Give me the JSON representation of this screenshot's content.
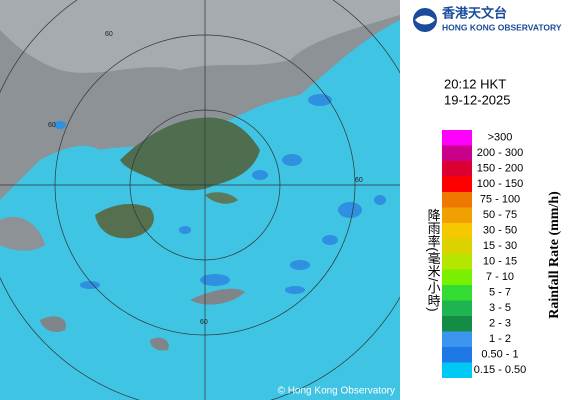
{
  "header": {
    "name_zh": "香港天文台",
    "name_en": "HONG KONG OBSERVATORY"
  },
  "time": "20:12 HKT",
  "date": "19-12-2025",
  "legend": {
    "title_zh": "降雨率(毫米/小時)",
    "title_en": "Rainfall Rate (mm/h)",
    "items": [
      {
        "label": ">300",
        "color": "#ff00ff"
      },
      {
        "label": "200 - 300",
        "color": "#c8008c"
      },
      {
        "label": "150 - 200",
        "color": "#dc0032"
      },
      {
        "label": "100 - 150",
        "color": "#ff0000"
      },
      {
        "label": "75 - 100",
        "color": "#f07800"
      },
      {
        "label": "50 - 75",
        "color": "#f0a000"
      },
      {
        "label": "30 - 50",
        "color": "#f5c800"
      },
      {
        "label": "15 - 30",
        "color": "#dcd200"
      },
      {
        "label": "10 - 15",
        "color": "#b4e600"
      },
      {
        "label": "7 - 10",
        "color": "#78f000"
      },
      {
        "label": "5 - 7",
        "color": "#32dc32"
      },
      {
        "label": "3 - 5",
        "color": "#1eb450"
      },
      {
        "label": "2 - 3",
        "color": "#148c46"
      },
      {
        "label": "1 - 2",
        "color": "#3c96f0"
      },
      {
        "label": "0.50 - 1",
        "color": "#1e78e6"
      },
      {
        "label": "0.15 - 0.50",
        "color": "#00c8f5"
      }
    ]
  },
  "map": {
    "ring_labels": [
      "60",
      "60",
      "60",
      "60"
    ]
  },
  "copyright": "© Hong Kong Observatory"
}
